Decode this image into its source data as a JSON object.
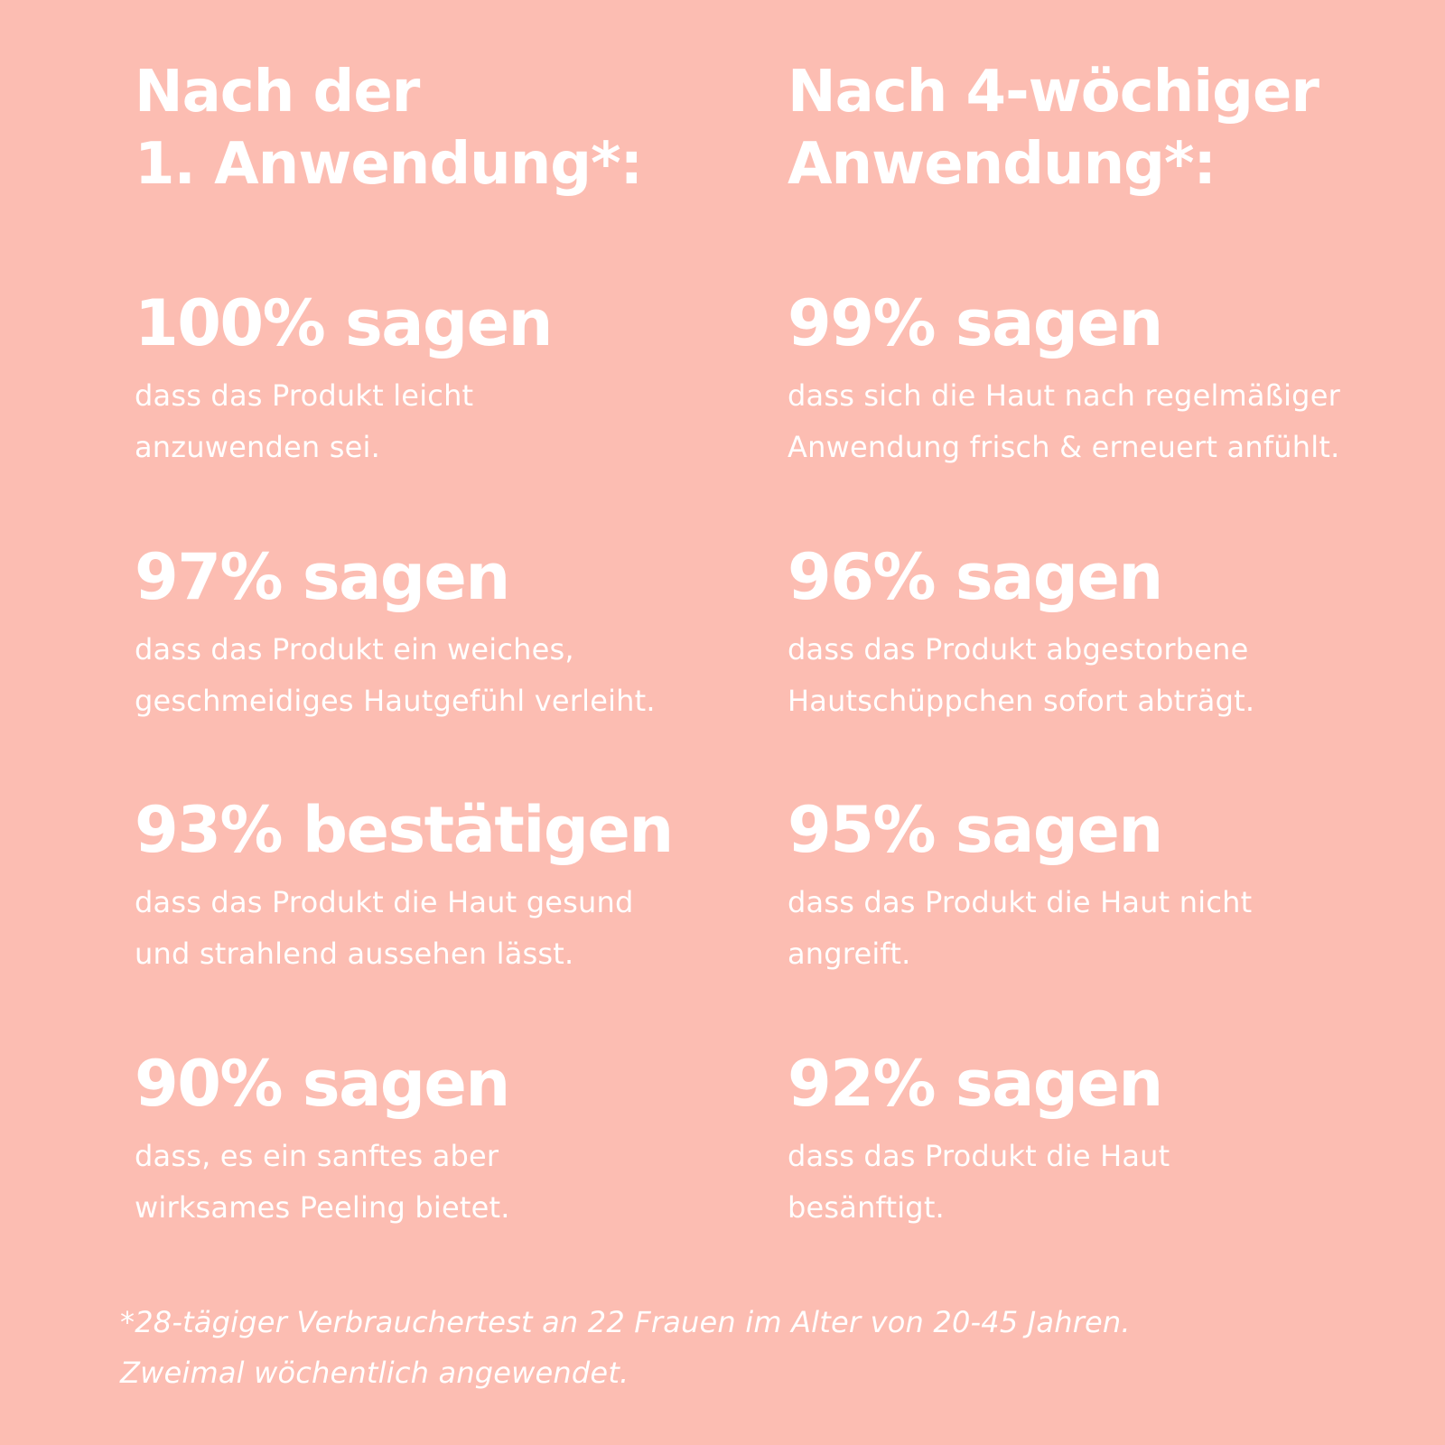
{
  "colors": {
    "background": "#fcbdb2",
    "text": "#ffffff"
  },
  "left_column": {
    "title_line1": "Nach der",
    "title_line2": "1. Anwendung*:",
    "stats": [
      {
        "headline": "100% sagen",
        "desc_line1": "dass das Produkt leicht",
        "desc_line2": "anzuwenden sei."
      },
      {
        "headline": "97% sagen",
        "desc_line1": "dass das Produkt ein weiches,",
        "desc_line2": "geschmeidiges Hautgefühl verleiht."
      },
      {
        "headline": "93% bestätigen",
        "desc_line1": "dass das Produkt die Haut gesund",
        "desc_line2": "und strahlend aussehen lässt."
      },
      {
        "headline": "90% sagen",
        "desc_line1": "dass, es ein sanftes aber",
        "desc_line2": "wirksames Peeling bietet."
      }
    ]
  },
  "right_column": {
    "title_line1": "Nach 4-wöchiger",
    "title_line2": "Anwendung*:",
    "stats": [
      {
        "headline": "99% sagen",
        "desc_line1": "dass sich die Haut nach regelmäßiger",
        "desc_line2": "Anwendung frisch & erneuert anfühlt."
      },
      {
        "headline": "96% sagen",
        "desc_line1": "dass das Produkt abgestorbene",
        "desc_line2": "Hautschüppchen sofort abträgt."
      },
      {
        "headline": "95% sagen",
        "desc_line1": "dass das Produkt die Haut nicht",
        "desc_line2": "angreift."
      },
      {
        "headline": "92% sagen",
        "desc_line1": "dass das Produkt die Haut",
        "desc_line2": "besänftigt."
      }
    ]
  },
  "footnote": {
    "line1": "*28-tägiger Verbrauchertest an 22 Frauen im Alter von 20-45 Jahren.",
    "line2": "Zweimal wöchentlich angewendet."
  }
}
